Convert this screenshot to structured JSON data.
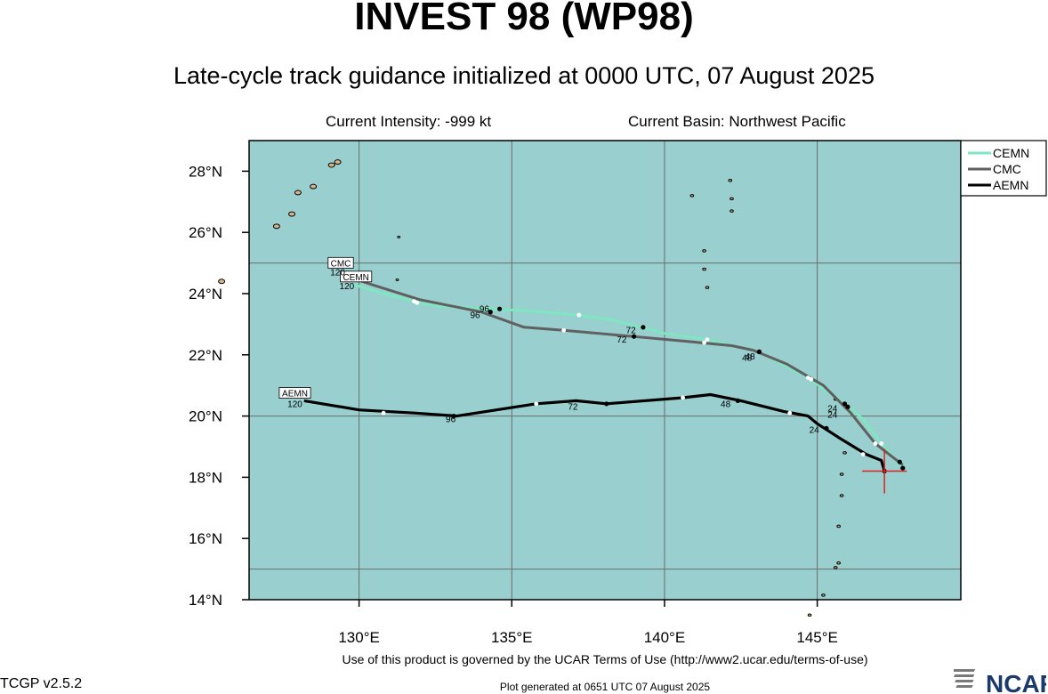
{
  "header": {
    "title": "INVEST 98 (WP98)",
    "subtitle": "Late-cycle track guidance initialized at 0000 UTC, 07 August 2025",
    "intensity": "Current Intensity: -999 kt",
    "basin": "Current Basin: Northwest Pacific"
  },
  "footer": {
    "terms": "Use of this product is governed by the UCAR Terms of Use (http://www2.ucar.edu/terms-of-use)",
    "version": "TCGP v2.5.2",
    "generated": "Plot generated at 0651 UTC   07 August 2025",
    "logo_text": "NCAR"
  },
  "colors": {
    "ocean": "#99cfcf",
    "land": "#d8b38a",
    "grid": "#6b6b6b",
    "CEMN": "#7fe6c0",
    "CMC": "#606060",
    "AEMN": "#000000",
    "current_marker": "#e02020"
  },
  "chart_data": {
    "type": "line",
    "xlim": [
      126.4,
      149.7
    ],
    "ylim": [
      14.0,
      29.0
    ],
    "x_ticks": [
      130,
      135,
      140,
      145
    ],
    "x_tick_labels": [
      "130°E",
      "135°E",
      "140°E",
      "145°E"
    ],
    "y_ticks": [
      14,
      16,
      18,
      20,
      22,
      24,
      26,
      28
    ],
    "y_tick_labels": [
      "14°N",
      "16°N",
      "18°N",
      "20°N",
      "22°N",
      "24°N",
      "26°N",
      "28°N"
    ],
    "grid_lon": [
      130,
      135,
      140,
      145
    ],
    "grid_lat": [
      15,
      20,
      25
    ],
    "current_position": {
      "lon": 147.2,
      "lat": 18.2
    },
    "legend": {
      "placement": "outside-top-right",
      "entries": [
        "CEMN",
        "CMC",
        "AEMN"
      ]
    },
    "series": [
      {
        "name": "CEMN",
        "track": [
          [
            147.8,
            18.3
          ],
          [
            147.1,
            19.1
          ],
          [
            146.5,
            19.9
          ],
          [
            145.9,
            20.4
          ],
          [
            144.7,
            21.25
          ],
          [
            143.1,
            22.1
          ],
          [
            141.4,
            22.5
          ],
          [
            140.0,
            22.7
          ],
          [
            139.3,
            22.9
          ],
          [
            138.2,
            23.15
          ],
          [
            137.2,
            23.3
          ],
          [
            135.4,
            23.45
          ],
          [
            134.0,
            23.5
          ],
          [
            132.5,
            23.6
          ],
          [
            131.8,
            23.75
          ],
          [
            130.8,
            24.0
          ],
          [
            129.8,
            24.3
          ]
        ],
        "white_dots": [
          [
            147.1,
            19.1
          ],
          [
            144.7,
            21.25
          ],
          [
            141.4,
            22.5
          ],
          [
            137.2,
            23.3
          ],
          [
            131.8,
            23.75
          ]
        ],
        "black_dots": [
          [
            147.8,
            18.3
          ],
          [
            145.9,
            20.4
          ],
          [
            143.1,
            22.1
          ],
          [
            139.3,
            22.9
          ],
          [
            134.6,
            23.5
          ]
        ],
        "hour_labels": [
          {
            "text": "24",
            "lon": 145.5,
            "lat": 20.15
          },
          {
            "text": "48",
            "lon": 142.8,
            "lat": 21.85
          },
          {
            "text": "72",
            "lon": 138.9,
            "lat": 22.7
          },
          {
            "text": "96",
            "lon": 134.1,
            "lat": 23.4
          },
          {
            "text": "120",
            "lon": 129.6,
            "lat": 24.15
          }
        ],
        "end_tag": {
          "text": "CEMN",
          "lon": 129.9,
          "lat": 24.5
        }
      },
      {
        "name": "CMC",
        "track": [
          [
            147.8,
            18.4
          ],
          [
            146.9,
            19.1
          ],
          [
            146.1,
            20.1
          ],
          [
            145.2,
            21.0
          ],
          [
            144.0,
            21.7
          ],
          [
            142.9,
            22.15
          ],
          [
            142.2,
            22.3
          ],
          [
            140.6,
            22.45
          ],
          [
            139.0,
            22.6
          ],
          [
            136.7,
            22.8
          ],
          [
            135.4,
            22.9
          ],
          [
            134.0,
            23.4
          ],
          [
            132.0,
            23.8
          ],
          [
            130.4,
            24.3
          ],
          [
            129.8,
            24.5
          ]
        ],
        "white_dots": [
          [
            146.9,
            19.1
          ],
          [
            144.8,
            21.2
          ],
          [
            141.3,
            22.4
          ],
          [
            136.7,
            22.8
          ],
          [
            131.9,
            23.7
          ]
        ],
        "black_dots": [
          [
            147.7,
            18.5
          ],
          [
            146.0,
            20.3
          ],
          [
            143.1,
            22.1
          ],
          [
            139.0,
            22.6
          ],
          [
            134.3,
            23.4
          ]
        ],
        "hour_labels": [
          {
            "text": "24",
            "lon": 145.5,
            "lat": 19.95
          },
          {
            "text": "48",
            "lon": 142.7,
            "lat": 21.8
          },
          {
            "text": "72",
            "lon": 138.6,
            "lat": 22.4
          },
          {
            "text": "96",
            "lon": 133.8,
            "lat": 23.2
          },
          {
            "text": "120",
            "lon": 129.3,
            "lat": 24.6
          }
        ],
        "end_tag": {
          "text": "CMC",
          "lon": 129.4,
          "lat": 24.95
        }
      },
      {
        "name": "AEMN",
        "track": [
          [
            147.2,
            18.2
          ],
          [
            147.1,
            18.55
          ],
          [
            146.6,
            18.75
          ],
          [
            145.7,
            19.3
          ],
          [
            145.0,
            19.75
          ],
          [
            144.7,
            20.0
          ],
          [
            143.9,
            20.15
          ],
          [
            142.5,
            20.5
          ],
          [
            141.5,
            20.7
          ],
          [
            140.6,
            20.6
          ],
          [
            138.1,
            20.4
          ],
          [
            137.1,
            20.5
          ],
          [
            135.8,
            20.4
          ],
          [
            133.2,
            20.0
          ],
          [
            131.8,
            20.1
          ],
          [
            130.0,
            20.2
          ],
          [
            128.2,
            20.5
          ]
        ],
        "white_dots": [
          [
            146.5,
            18.75
          ],
          [
            144.1,
            20.1
          ],
          [
            140.6,
            20.6
          ],
          [
            135.8,
            20.4
          ],
          [
            130.8,
            20.1
          ]
        ],
        "black_dots": [
          [
            147.2,
            18.2
          ],
          [
            145.3,
            19.6
          ],
          [
            142.4,
            20.5
          ],
          [
            138.1,
            20.4
          ],
          [
            133.1,
            20.0
          ]
        ],
        "hour_labels": [
          {
            "text": "24",
            "lon": 144.9,
            "lat": 19.45
          },
          {
            "text": "48",
            "lon": 142.0,
            "lat": 20.3
          },
          {
            "text": "72",
            "lon": 137.0,
            "lat": 20.2
          },
          {
            "text": "96",
            "lon": 133.0,
            "lat": 19.8
          },
          {
            "text": "120",
            "lon": 127.9,
            "lat": 20.3
          }
        ],
        "end_tag": {
          "text": "AEMN",
          "lon": 127.9,
          "lat": 20.7
        }
      }
    ]
  },
  "land": {
    "ryukyu_islands": [
      [
        129.3,
        28.3
      ],
      [
        129.1,
        28.2
      ],
      [
        128.5,
        27.5
      ],
      [
        128.0,
        27.3
      ],
      [
        127.8,
        26.6
      ],
      [
        127.3,
        26.2
      ],
      [
        125.5,
        24.4
      ]
    ],
    "marianas_islands": [
      [
        145.7,
        15.2
      ],
      [
        145.6,
        15.05
      ],
      [
        144.75,
        13.5
      ],
      [
        145.2,
        14.15
      ],
      [
        145.7,
        16.4
      ],
      [
        145.8,
        17.4
      ],
      [
        145.8,
        18.1
      ],
      [
        145.9,
        18.8
      ],
      [
        145.6,
        20.55
      ],
      [
        142.2,
        27.1
      ],
      [
        142.2,
        26.7
      ],
      [
        142.15,
        27.7
      ],
      [
        141.3,
        24.8
      ],
      [
        141.3,
        25.4
      ],
      [
        141.4,
        24.2
      ],
      [
        140.9,
        27.2
      ]
    ],
    "daito_islands": [
      [
        131.3,
        25.85
      ],
      [
        131.25,
        24.45
      ]
    ]
  }
}
